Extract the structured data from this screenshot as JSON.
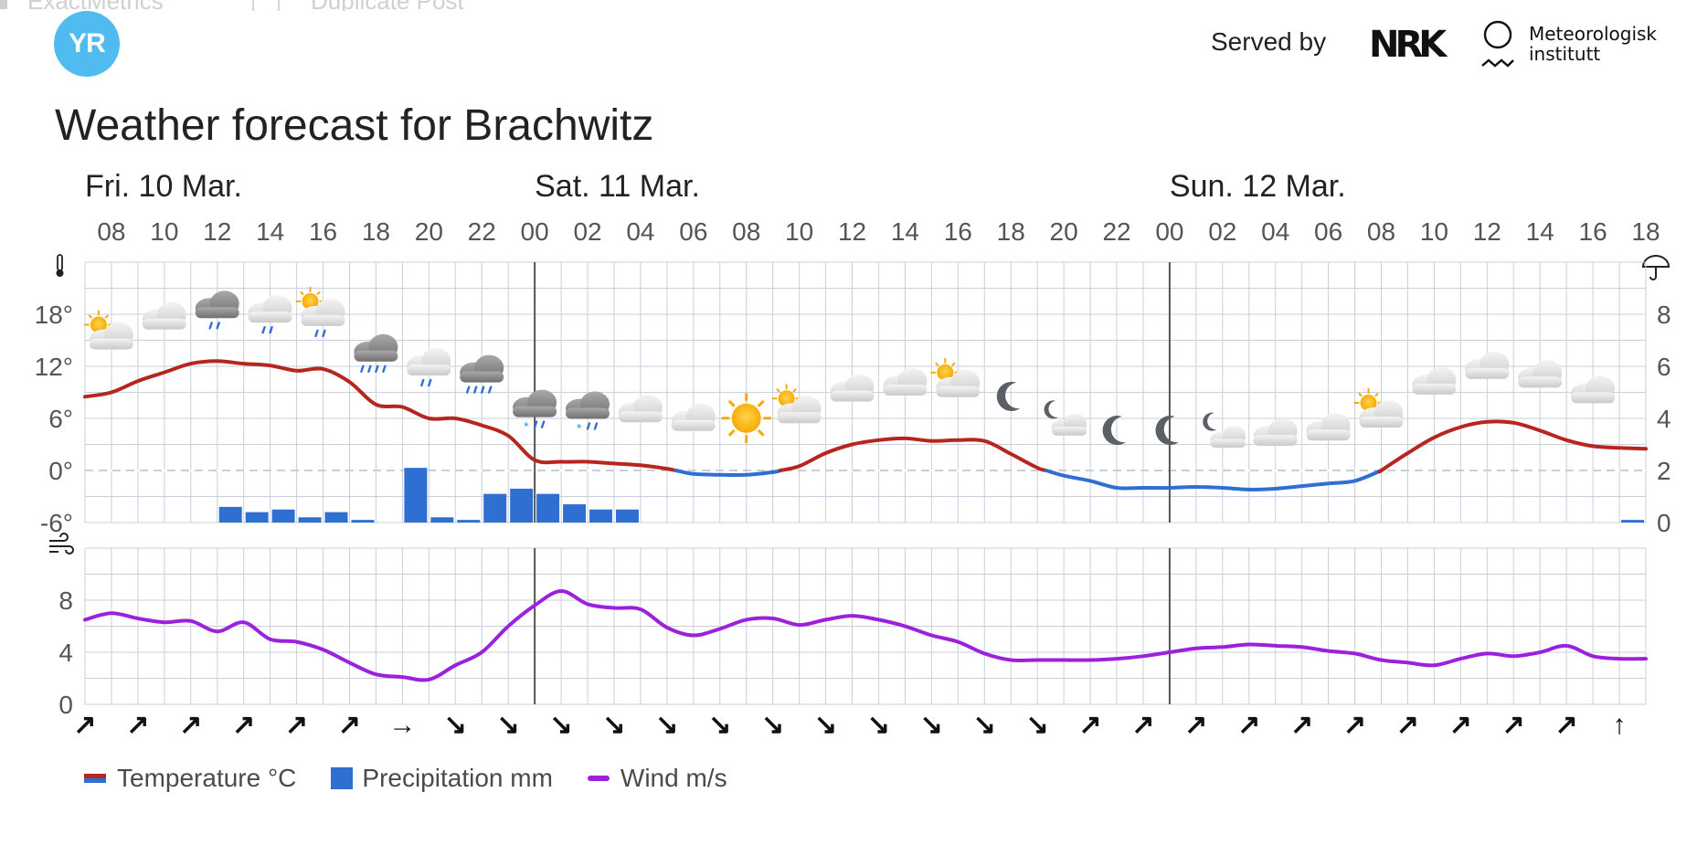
{
  "header": {
    "served_by": "Served by",
    "nrk_logo_text": "NRK",
    "met_line1": "Meteorologisk",
    "met_line2": "institutt",
    "yr_logo_text": "YR",
    "ghost_text": "ExactMetrics",
    "ghost_text2": "Duplicate Post"
  },
  "page_title": "Weather forecast for Brachwitz",
  "colors": {
    "temp_warm": "#b5271e",
    "temp_cold": "#2f6fd1",
    "precip": "#2f6fd1",
    "wind": "#9b21dd",
    "grid": "#c7d0dc",
    "logo": "#4fbbee"
  },
  "legend": {
    "temperature": "Temperature °C",
    "precipitation": "Precipitation mm",
    "wind": "Wind m/s"
  },
  "chart_data": {
    "type": "line",
    "days": [
      {
        "label": "Fri. 10 Mar.",
        "hour": 7
      },
      {
        "label": "Sat. 11 Mar.",
        "hour": 24
      },
      {
        "label": "Sun. 12 Mar.",
        "hour": 48
      }
    ],
    "x_hour_range": [
      7,
      66
    ],
    "hour_labels": [
      "08",
      "10",
      "12",
      "14",
      "16",
      "18",
      "20",
      "22",
      "00",
      "02",
      "04",
      "06",
      "08",
      "10",
      "12",
      "14",
      "16",
      "18",
      "20",
      "22",
      "00",
      "02",
      "04",
      "06",
      "08",
      "10",
      "12",
      "14",
      "16",
      "18"
    ],
    "temperature": {
      "ylim": [
        -6,
        24
      ],
      "ticks": [
        "18°",
        "12°",
        "6°",
        "0°",
        "-6°"
      ],
      "tick_values": [
        18,
        12,
        6,
        0,
        -6
      ],
      "points": [
        [
          7,
          8.5
        ],
        [
          8,
          9
        ],
        [
          9,
          10.3
        ],
        [
          10,
          11.3
        ],
        [
          11,
          12.3
        ],
        [
          12,
          12.6
        ],
        [
          13,
          12.3
        ],
        [
          14,
          12.1
        ],
        [
          15,
          11.5
        ],
        [
          16,
          11.7
        ],
        [
          17,
          10.2
        ],
        [
          18,
          7.6
        ],
        [
          19,
          7.3
        ],
        [
          20,
          6
        ],
        [
          21,
          6
        ],
        [
          22,
          5.2
        ],
        [
          23,
          4
        ],
        [
          24,
          1.2
        ],
        [
          25,
          1
        ],
        [
          26,
          1
        ],
        [
          27,
          0.8
        ],
        [
          28,
          0.6
        ],
        [
          29,
          0.2
        ],
        [
          30,
          -0.4
        ],
        [
          31,
          -0.5
        ],
        [
          32,
          -0.5
        ],
        [
          33,
          -0.2
        ],
        [
          34,
          0.5
        ],
        [
          35,
          2
        ],
        [
          36,
          3
        ],
        [
          37,
          3.5
        ],
        [
          38,
          3.7
        ],
        [
          39,
          3.4
        ],
        [
          40,
          3.5
        ],
        [
          41,
          3.4
        ],
        [
          42,
          1.9
        ],
        [
          43,
          0.3
        ],
        [
          44,
          -0.6
        ],
        [
          45,
          -1.2
        ],
        [
          46,
          -2
        ],
        [
          47,
          -2
        ],
        [
          48,
          -2
        ],
        [
          49,
          -1.9
        ],
        [
          50,
          -2
        ],
        [
          51,
          -2.2
        ],
        [
          52,
          -2.1
        ],
        [
          53,
          -1.8
        ],
        [
          54,
          -1.5
        ],
        [
          55,
          -1.2
        ],
        [
          56,
          0
        ],
        [
          57,
          2
        ],
        [
          58,
          3.8
        ],
        [
          59,
          5
        ],
        [
          60,
          5.6
        ],
        [
          61,
          5.5
        ],
        [
          62,
          4.6
        ],
        [
          63,
          3.5
        ],
        [
          64,
          2.8
        ],
        [
          65,
          2.6
        ],
        [
          66,
          2.5
        ]
      ]
    },
    "precipitation": {
      "ylim": [
        0,
        10
      ],
      "unit": "mm",
      "ticks": [
        "8",
        "6",
        "4",
        "2",
        "0"
      ],
      "tick_values": [
        8,
        6,
        4,
        2,
        0
      ],
      "bars": [
        [
          12,
          0.6
        ],
        [
          13,
          0.4
        ],
        [
          14,
          0.5
        ],
        [
          15,
          0.2
        ],
        [
          16,
          0.4
        ],
        [
          17,
          0.1
        ],
        [
          19,
          2.1
        ],
        [
          20,
          0.2
        ],
        [
          21,
          0.1
        ],
        [
          22,
          1.1
        ],
        [
          23,
          1.3
        ],
        [
          24,
          1.1
        ],
        [
          25,
          0.7
        ],
        [
          26,
          0.5
        ],
        [
          27,
          0.5
        ],
        [
          65,
          0.1
        ]
      ]
    },
    "wind": {
      "ylim": [
        0,
        12
      ],
      "ticks": [
        "8",
        "4",
        "0"
      ],
      "tick_values": [
        8,
        4,
        0
      ],
      "points": [
        [
          7,
          6.5
        ],
        [
          8,
          7
        ],
        [
          9,
          6.6
        ],
        [
          10,
          6.3
        ],
        [
          11,
          6.4
        ],
        [
          12,
          5.6
        ],
        [
          13,
          6.3
        ],
        [
          14,
          5
        ],
        [
          15,
          4.8
        ],
        [
          16,
          4.2
        ],
        [
          17,
          3.2
        ],
        [
          18,
          2.3
        ],
        [
          19,
          2.1
        ],
        [
          20,
          1.9
        ],
        [
          21,
          3
        ],
        [
          22,
          4
        ],
        [
          23,
          6
        ],
        [
          24,
          7.6
        ],
        [
          25,
          8.7
        ],
        [
          26,
          7.7
        ],
        [
          27,
          7.4
        ],
        [
          28,
          7.3
        ],
        [
          29,
          5.9
        ],
        [
          30,
          5.3
        ],
        [
          31,
          5.8
        ],
        [
          32,
          6.5
        ],
        [
          33,
          6.6
        ],
        [
          34,
          6.1
        ],
        [
          35,
          6.5
        ],
        [
          36,
          6.8
        ],
        [
          37,
          6.5
        ],
        [
          38,
          6
        ],
        [
          39,
          5.3
        ],
        [
          40,
          4.8
        ],
        [
          41,
          3.9
        ],
        [
          42,
          3.4
        ],
        [
          43,
          3.4
        ],
        [
          44,
          3.4
        ],
        [
          45,
          3.4
        ],
        [
          46,
          3.5
        ],
        [
          47,
          3.7
        ],
        [
          48,
          4
        ],
        [
          49,
          4.3
        ],
        [
          50,
          4.4
        ],
        [
          51,
          4.6
        ],
        [
          52,
          4.5
        ],
        [
          53,
          4.4
        ],
        [
          54,
          4.1
        ],
        [
          55,
          3.9
        ],
        [
          56,
          3.4
        ],
        [
          57,
          3.2
        ],
        [
          58,
          3
        ],
        [
          59,
          3.5
        ],
        [
          60,
          3.9
        ],
        [
          61,
          3.7
        ],
        [
          62,
          4
        ],
        [
          63,
          4.5
        ],
        [
          64,
          3.7
        ],
        [
          65,
          3.5
        ],
        [
          66,
          3.5
        ]
      ],
      "direction_arrows": [
        "↗",
        "↗",
        "↗",
        "↗",
        "↗",
        "↗",
        "→",
        "↘",
        "↘",
        "↘",
        "↘",
        "↘",
        "↘",
        "↘",
        "↘",
        "↘",
        "↘",
        "↘",
        "↘",
        "↗",
        "↗",
        "↗",
        "↗",
        "↗",
        "↗",
        "↗",
        "↗",
        "↗",
        "↗",
        "↑"
      ]
    },
    "symbols": [
      {
        "hour": 8,
        "icon": "partly-cloudy-day-icon"
      },
      {
        "hour": 10,
        "icon": "cloud-icon"
      },
      {
        "hour": 12,
        "icon": "rain-icon"
      },
      {
        "hour": 14,
        "icon": "light-rain-icon"
      },
      {
        "hour": 16,
        "icon": "sun-showers-icon"
      },
      {
        "hour": 18,
        "icon": "heavy-rain-icon"
      },
      {
        "hour": 20,
        "icon": "light-rain-icon"
      },
      {
        "hour": 22,
        "icon": "heavy-rain-icon"
      },
      {
        "hour": 24,
        "icon": "sleet-icon"
      },
      {
        "hour": 26,
        "icon": "sleet-icon"
      },
      {
        "hour": 28,
        "icon": "cloud-icon"
      },
      {
        "hour": 30,
        "icon": "cloud-icon"
      },
      {
        "hour": 32,
        "icon": "sun-icon"
      },
      {
        "hour": 34,
        "icon": "partly-cloudy-day-icon"
      },
      {
        "hour": 36,
        "icon": "cloud-icon"
      },
      {
        "hour": 38,
        "icon": "cloud-icon"
      },
      {
        "hour": 40,
        "icon": "partly-cloudy-day-icon"
      },
      {
        "hour": 42,
        "icon": "moon-icon"
      },
      {
        "hour": 44,
        "icon": "partly-cloudy-night-icon"
      },
      {
        "hour": 46,
        "icon": "moon-icon"
      },
      {
        "hour": 48,
        "icon": "moon-icon"
      },
      {
        "hour": 50,
        "icon": "partly-cloudy-night-icon"
      },
      {
        "hour": 52,
        "icon": "cloud-icon"
      },
      {
        "hour": 54,
        "icon": "cloud-icon"
      },
      {
        "hour": 56,
        "icon": "partly-cloudy-day-icon"
      },
      {
        "hour": 58,
        "icon": "cloud-icon"
      },
      {
        "hour": 60,
        "icon": "cloud-icon"
      },
      {
        "hour": 62,
        "icon": "cloud-icon"
      },
      {
        "hour": 64,
        "icon": "cloud-icon"
      }
    ]
  }
}
